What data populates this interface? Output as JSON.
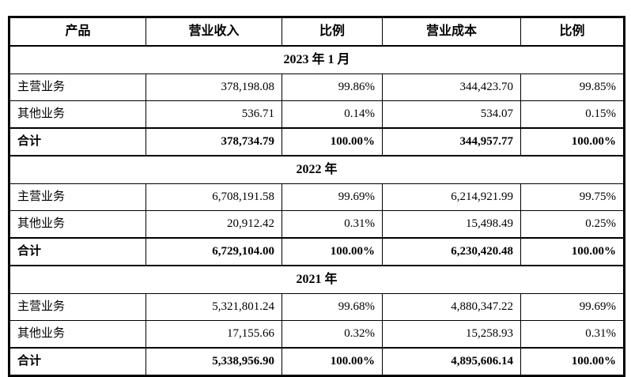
{
  "table": {
    "columns": [
      "产品",
      "营业收入",
      "比例",
      "营业成本",
      "比例"
    ],
    "sections": [
      {
        "period": "2023 年 1 月",
        "rows": [
          {
            "product": "主营业务",
            "revenue": "378,198.08",
            "revenue_pct": "99.86%",
            "cost": "344,423.70",
            "cost_pct": "99.85%"
          },
          {
            "product": "其他业务",
            "revenue": "536.71",
            "revenue_pct": "0.14%",
            "cost": "534.07",
            "cost_pct": "0.15%"
          },
          {
            "product": "合计",
            "revenue": "378,734.79",
            "revenue_pct": "100.00%",
            "cost": "344,957.77",
            "cost_pct": "100.00%"
          }
        ]
      },
      {
        "period": "2022 年",
        "rows": [
          {
            "product": "主营业务",
            "revenue": "6,708,191.58",
            "revenue_pct": "99.69%",
            "cost": "6,214,921.99",
            "cost_pct": "99.75%"
          },
          {
            "product": "其他业务",
            "revenue": "20,912.42",
            "revenue_pct": "0.31%",
            "cost": "15,498.49",
            "cost_pct": "0.25%"
          },
          {
            "product": "合计",
            "revenue": "6,729,104.00",
            "revenue_pct": "100.00%",
            "cost": "6,230,420.48",
            "cost_pct": "100.00%"
          }
        ]
      },
      {
        "period": "2021 年",
        "rows": [
          {
            "product": "主营业务",
            "revenue": "5,321,801.24",
            "revenue_pct": "99.68%",
            "cost": "4,880,347.22",
            "cost_pct": "99.69%"
          },
          {
            "product": "其他业务",
            "revenue": "17,155.66",
            "revenue_pct": "0.32%",
            "cost": "15,258.93",
            "cost_pct": "0.31%"
          },
          {
            "product": "合计",
            "revenue": "5,338,956.90",
            "revenue_pct": "100.00%",
            "cost": "4,895,606.14",
            "cost_pct": "100.00%"
          }
        ]
      }
    ],
    "colors": {
      "text": "#000000",
      "border": "#000000",
      "background": "#ffffff"
    }
  }
}
